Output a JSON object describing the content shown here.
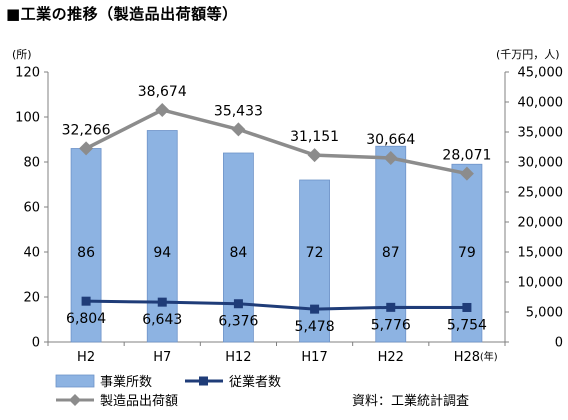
{
  "chart_data": {
    "type": "bar+line",
    "title": "■工業の推移（製造品出荷額等）",
    "y_left_unit": "(所)",
    "y_right_unit": "(千万円，人)",
    "x_unit": "(年)",
    "categories": [
      "H2",
      "H7",
      "H12",
      "H17",
      "H22",
      "H28"
    ],
    "ylim_left": [
      0,
      120
    ],
    "yticks_left": [
      0,
      20,
      40,
      60,
      80,
      100,
      120
    ],
    "ylim_right": [
      0,
      45000
    ],
    "yticks_right": [
      0,
      5000,
      10000,
      15000,
      20000,
      25000,
      30000,
      35000,
      40000,
      45000
    ],
    "ytick_labels_right": [
      "0",
      "5,000",
      "10,000",
      "15,000",
      "20,000",
      "25,000",
      "30,000",
      "35,000",
      "40,000",
      "45,000"
    ],
    "series": [
      {
        "name": "事業所数",
        "type": "bar",
        "axis": "left",
        "values": [
          86,
          94,
          84,
          72,
          87,
          79
        ],
        "labels": [
          "86",
          "94",
          "84",
          "72",
          "87",
          "79"
        ],
        "color": "#8DB3E2"
      },
      {
        "name": "従業者数",
        "type": "line",
        "axis": "right",
        "values": [
          6804,
          6643,
          6376,
          5478,
          5776,
          5754
        ],
        "labels": [
          "6,804",
          "6,643",
          "6,376",
          "5,478",
          "5,776",
          "5,754"
        ],
        "color": "#1F3C78"
      },
      {
        "name": "製造品出荷額",
        "type": "line",
        "axis": "right",
        "values": [
          32266,
          38674,
          35433,
          31151,
          30664,
          28071
        ],
        "labels": [
          "32,266",
          "38,674",
          "35,433",
          "31,151",
          "30,664",
          "28,071"
        ],
        "color": "#8C8C8C"
      }
    ],
    "legend_position": "bottom-left",
    "grid": false
  },
  "source_note": "資料：工業統計調査"
}
